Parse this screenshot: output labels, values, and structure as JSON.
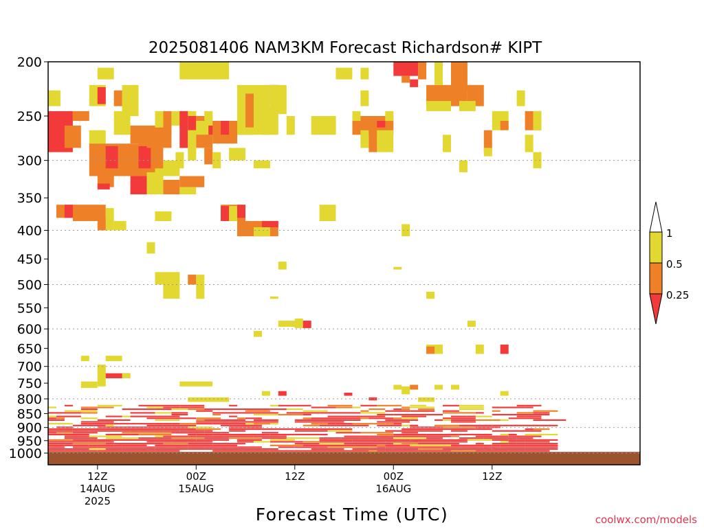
{
  "chart_data": {
    "type": "heatmap",
    "title": "2025081406 NAM3KM Forecast Richardson# KIPT",
    "xlabel": "Forecast Time (UTC)",
    "ylabel": "",
    "credit": "coolwx.com/models",
    "y_axis": {
      "scale": "pressure (hPa), decreasing upward",
      "range": [
        1000,
        200
      ],
      "ticks": [
        200,
        250,
        300,
        350,
        400,
        450,
        500,
        550,
        600,
        650,
        700,
        750,
        800,
        850,
        900,
        950,
        1000
      ],
      "gridlines_at": [
        300,
        400,
        500,
        600,
        700,
        800,
        900,
        1000
      ]
    },
    "x_axis": {
      "range": [
        "2025-08-14 06Z",
        "2025-08-17 06Z"
      ],
      "ticks": [
        {
          "time": "2025-08-14 12Z",
          "label_lines": [
            "12Z",
            "14AUG",
            "2025"
          ]
        },
        {
          "time": "2025-08-15 00Z",
          "label_lines": [
            "00Z",
            "15AUG"
          ]
        },
        {
          "time": "2025-08-15 12Z",
          "label_lines": [
            "12Z"
          ]
        },
        {
          "time": "2025-08-16 00Z",
          "label_lines": [
            "00Z",
            "16AUG"
          ]
        },
        {
          "time": "2025-08-16 12Z",
          "label_lines": [
            "12Z"
          ]
        }
      ]
    },
    "legend": {
      "placement": "right",
      "boundaries": [
        "0.25",
        "0.5",
        "1"
      ],
      "bins": [
        {
          "range": "< 0.25",
          "color": "#f23a3a"
        },
        {
          "range": "0.25 - 0.5",
          "color": "#ee8028"
        },
        {
          "range": "0.5 - 1",
          "color": "#e2d831"
        },
        {
          "range": "> 1",
          "color": "#ffffff"
        }
      ]
    },
    "ground_color": "#9b542d",
    "ground_top_hPa": 995,
    "regions": [
      {
        "hour": 0,
        "hours": 1.5,
        "p_top": 225,
        "p_bot": 240,
        "bin": "0.5-1"
      },
      {
        "hour": 0,
        "hours": 3,
        "p_top": 245,
        "p_bot": 290,
        "bin": "<0.25"
      },
      {
        "hour": 2,
        "hours": 2,
        "p_top": 260,
        "p_bot": 285,
        "bin": "0.25-0.5"
      },
      {
        "hour": 3,
        "hours": 2,
        "p_top": 245,
        "p_bot": 255,
        "bin": "0.25-0.5"
      },
      {
        "hour": 5,
        "hours": 2,
        "p_top": 265,
        "p_bot": 285,
        "bin": "0.5-1"
      },
      {
        "hour": 5,
        "hours": 9,
        "p_top": 280,
        "p_bot": 320,
        "bin": "0.25-0.5"
      },
      {
        "hour": 7,
        "hours": 1.5,
        "p_top": 283,
        "p_bot": 310,
        "bin": "<0.25"
      },
      {
        "hour": 11,
        "hours": 1.5,
        "p_top": 283,
        "p_bot": 310,
        "bin": "<0.25"
      },
      {
        "hour": 6,
        "hours": 2,
        "p_top": 318,
        "p_bot": 335,
        "bin": "0.25-0.5"
      },
      {
        "hour": 6,
        "hours": 1.5,
        "p_top": 330,
        "p_bot": 338,
        "bin": "<0.25"
      },
      {
        "hour": 1,
        "hours": 2,
        "p_top": 360,
        "p_bot": 380,
        "bin": "0.25-0.5"
      },
      {
        "hour": 2,
        "hours": 1.5,
        "p_top": 360,
        "p_bot": 380,
        "bin": "<0.25"
      },
      {
        "hour": 3,
        "hours": 4,
        "p_top": 360,
        "p_bot": 385,
        "bin": "0.25-0.5"
      },
      {
        "hour": 7,
        "hours": 1,
        "p_top": 365,
        "p_bot": 400,
        "bin": "0.5-1"
      },
      {
        "hour": 6,
        "hours": 1,
        "p_top": 380,
        "p_bot": 400,
        "bin": "0.25-0.5"
      },
      {
        "hour": 8,
        "hours": 1.5,
        "p_top": 385,
        "p_bot": 400,
        "bin": "0.5-1"
      },
      {
        "hour": 10,
        "hours": 2,
        "p_top": 320,
        "p_bot": 345,
        "bin": "<0.25"
      },
      {
        "hour": 6,
        "hours": 2,
        "p_top": 205,
        "p_bot": 215,
        "bin": "0.5-1"
      },
      {
        "hour": 5,
        "hours": 2,
        "p_top": 220,
        "p_bot": 240,
        "bin": "0.5-1"
      },
      {
        "hour": 6,
        "hours": 1,
        "p_top": 222,
        "p_bot": 238,
        "bin": "<0.25"
      },
      {
        "hour": 8,
        "hours": 1,
        "p_top": 225,
        "p_bot": 240,
        "bin": "0.25-0.5"
      },
      {
        "hour": 9,
        "hours": 2,
        "p_top": 220,
        "p_bot": 250,
        "bin": "0.5-1"
      },
      {
        "hour": 8,
        "hours": 2,
        "p_top": 245,
        "p_bot": 270,
        "bin": "0.5-1"
      },
      {
        "hour": 10,
        "hours": 2,
        "p_top": 260,
        "p_bot": 280,
        "bin": "0.25-0.5"
      },
      {
        "hour": 11,
        "hours": 2,
        "p_top": 268,
        "p_bot": 282,
        "bin": "0.25-0.5"
      },
      {
        "hour": 12,
        "hours": 2,
        "p_top": 260,
        "p_bot": 285,
        "bin": "0.25-0.5"
      },
      {
        "hour": 13,
        "hours": 2,
        "p_top": 258,
        "p_bot": 285,
        "bin": "0.25-0.5"
      },
      {
        "hour": 14,
        "hours": 1,
        "p_top": 245,
        "p_bot": 270,
        "bin": "0.25-0.5"
      },
      {
        "hour": 15,
        "hours": 1,
        "p_top": 245,
        "p_bot": 260,
        "bin": "0.5-1"
      },
      {
        "hour": 13,
        "hours": 1,
        "p_top": 245,
        "p_bot": 262,
        "bin": "0.5-1"
      },
      {
        "hour": 16,
        "hours": 1,
        "p_top": 245,
        "p_bot": 285,
        "bin": "<0.25"
      },
      {
        "hour": 16,
        "hours": 1,
        "p_top": 245,
        "p_bot": 262,
        "bin": "<0.25"
      },
      {
        "hour": 17,
        "hours": 1,
        "p_top": 245,
        "p_bot": 290,
        "bin": "0.5-1"
      },
      {
        "hour": 17,
        "hours": 1,
        "p_top": 250,
        "p_bot": 265,
        "bin": "<0.25"
      },
      {
        "hour": 18,
        "hours": 2,
        "p_top": 250,
        "p_bot": 285,
        "bin": "0.25-0.5"
      },
      {
        "hour": 19,
        "hours": 1,
        "p_top": 245,
        "p_bot": 255,
        "bin": "0.5-1"
      },
      {
        "hour": 16,
        "hours": 3,
        "p_top": 320,
        "p_bot": 335,
        "bin": "0.25-0.5"
      },
      {
        "hour": 16,
        "hours": 2,
        "p_top": 335,
        "p_bot": 345,
        "bin": "0.5-1"
      },
      {
        "hour": 14,
        "hours": 2,
        "p_top": 325,
        "p_bot": 345,
        "bin": "0.25-0.5"
      },
      {
        "hour": 13,
        "hours": 1,
        "p_top": 325,
        "p_bot": 340,
        "bin": "0.5-1"
      },
      {
        "hour": 12,
        "hours": 2,
        "p_top": 315,
        "p_bot": 345,
        "bin": "0.5-1"
      },
      {
        "hour": 13,
        "hours": 1,
        "p_top": 310,
        "p_bot": 330,
        "bin": "0.5-1"
      },
      {
        "hour": 12.5,
        "hours": 1,
        "p_top": 320,
        "p_bot": 345,
        "bin": "0.5-1"
      },
      {
        "hour": 14,
        "hours": 2,
        "p_top": 300,
        "p_bot": 320,
        "bin": "0.5-1"
      },
      {
        "hour": 15.5,
        "hours": 1,
        "p_top": 290,
        "p_bot": 310,
        "bin": "0.5-1"
      },
      {
        "hour": 17,
        "hours": 1,
        "p_top": 285,
        "p_bot": 300,
        "bin": "0.5-1"
      },
      {
        "hour": 19,
        "hours": 1,
        "p_top": 285,
        "p_bot": 305,
        "bin": "0.25-0.5"
      },
      {
        "hour": 20,
        "hours": 1,
        "p_top": 290,
        "p_bot": 310,
        "bin": "0.5-1"
      },
      {
        "hour": 18,
        "hours": 2,
        "p_top": 255,
        "p_bot": 270,
        "bin": "0.5-1"
      },
      {
        "hour": 19.5,
        "hours": 1,
        "p_top": 260,
        "p_bot": 270,
        "bin": "<0.25"
      },
      {
        "hour": 13,
        "hours": 2,
        "p_top": 370,
        "p_bot": 385,
        "bin": "0.5-1"
      },
      {
        "hour": 16,
        "hours": 6,
        "p_top": 200,
        "p_bot": 215,
        "bin": "0.5-1"
      },
      {
        "hour": 20,
        "hours": 3,
        "p_top": 255,
        "p_bot": 280,
        "bin": "0.25-0.5"
      },
      {
        "hour": 21,
        "hours": 1,
        "p_top": 255,
        "p_bot": 270,
        "bin": "<0.25"
      },
      {
        "hour": 23,
        "hours": 2,
        "p_top": 240,
        "p_bot": 270,
        "bin": "0.25-0.5"
      },
      {
        "hour": 22,
        "hours": 2,
        "p_top": 285,
        "p_bot": 300,
        "bin": "0.5-1"
      },
      {
        "hour": 21,
        "hours": 3,
        "p_top": 360,
        "p_bot": 385,
        "bin": "0.25-0.5"
      },
      {
        "hour": 21,
        "hours": 1,
        "p_top": 362,
        "p_bot": 385,
        "bin": "<0.25"
      },
      {
        "hour": 22,
        "hours": 1,
        "p_top": 362,
        "p_bot": 385,
        "bin": "0.5-1"
      },
      {
        "hour": 23,
        "hours": 1,
        "p_top": 360,
        "p_bot": 380,
        "bin": "<0.25"
      },
      {
        "hour": 23,
        "hours": 5,
        "p_top": 385,
        "p_bot": 410,
        "bin": "0.25-0.5"
      },
      {
        "hour": 25,
        "hours": 2,
        "p_top": 395,
        "p_bot": 410,
        "bin": "0.5-1"
      },
      {
        "hour": 26,
        "hours": 2,
        "p_top": 385,
        "p_bot": 395,
        "bin": "<0.25"
      },
      {
        "hour": 23,
        "hours": 4,
        "p_top": 220,
        "p_bot": 270,
        "bin": "0.5-1"
      },
      {
        "hour": 24,
        "hours": 1,
        "p_top": 228,
        "p_bot": 262,
        "bin": "0.25-0.5"
      },
      {
        "hour": 25,
        "hours": 1,
        "p_top": 230,
        "p_bot": 245,
        "bin": "0.5-1"
      },
      {
        "hour": 27,
        "hours": 1,
        "p_top": 220,
        "p_bot": 238,
        "bin": "<0.25"
      },
      {
        "hour": 27,
        "hours": 2,
        "p_top": 220,
        "p_bot": 248,
        "bin": "0.5-1"
      },
      {
        "hour": 26,
        "hours": 2,
        "p_top": 240,
        "p_bot": 270,
        "bin": "0.5-1"
      },
      {
        "hour": 29,
        "hours": 1,
        "p_top": 250,
        "p_bot": 270,
        "bin": "0.5-1"
      },
      {
        "hour": 25,
        "hours": 2,
        "p_top": 300,
        "p_bot": 310,
        "bin": "0.5-1"
      },
      {
        "hour": 32,
        "hours": 3,
        "p_top": 250,
        "p_bot": 270,
        "bin": "0.5-1"
      },
      {
        "hour": 33,
        "hours": 2,
        "p_top": 360,
        "p_bot": 385,
        "bin": "0.5-1"
      },
      {
        "hour": 35,
        "hours": 2,
        "p_top": 205,
        "p_bot": 215,
        "bin": "0.5-1"
      },
      {
        "hour": 38,
        "hours": 1,
        "p_top": 205,
        "p_bot": 215,
        "bin": "0.5-1"
      },
      {
        "hour": 37,
        "hours": 5,
        "p_top": 250,
        "p_bot": 270,
        "bin": "0.25-0.5"
      },
      {
        "hour": 37,
        "hours": 1,
        "p_top": 245,
        "p_bot": 255,
        "bin": "0.5-1"
      },
      {
        "hour": 38,
        "hours": 1,
        "p_top": 265,
        "p_bot": 285,
        "bin": "0.5-1"
      },
      {
        "hour": 39,
        "hours": 1,
        "p_top": 265,
        "p_bot": 290,
        "bin": "0.25-0.5"
      },
      {
        "hour": 40,
        "hours": 2,
        "p_top": 265,
        "p_bot": 290,
        "bin": "0.5-1"
      },
      {
        "hour": 40,
        "hours": 1,
        "p_top": 255,
        "p_bot": 262,
        "bin": "<0.25"
      },
      {
        "hour": 41,
        "hours": 1,
        "p_top": 245,
        "p_bot": 255,
        "bin": "0.5-1"
      },
      {
        "hour": 38,
        "hours": 1,
        "p_top": 225,
        "p_bot": 240,
        "bin": "0.5-1"
      },
      {
        "hour": 42,
        "hours": 3,
        "p_top": 200,
        "p_bot": 212,
        "bin": "<0.25"
      },
      {
        "hour": 45,
        "hours": 1,
        "p_top": 200,
        "p_bot": 215,
        "bin": "0.25-0.5"
      },
      {
        "hour": 43,
        "hours": 1,
        "p_top": 212,
        "p_bot": 218,
        "bin": "0.25-0.5"
      },
      {
        "hour": 44,
        "hours": 1,
        "p_top": 215,
        "p_bot": 222,
        "bin": "<0.25"
      },
      {
        "hour": 46,
        "hours": 5,
        "p_top": 220,
        "p_bot": 240,
        "bin": "0.25-0.5"
      },
      {
        "hour": 46,
        "hours": 3,
        "p_top": 235,
        "p_bot": 245,
        "bin": "0.5-1"
      },
      {
        "hour": 47,
        "hours": 1,
        "p_top": 200,
        "p_bot": 220,
        "bin": "0.5-1"
      },
      {
        "hour": 49,
        "hours": 2,
        "p_top": 200,
        "p_bot": 225,
        "bin": "0.25-0.5"
      },
      {
        "hour": 51,
        "hours": 2,
        "p_top": 220,
        "p_bot": 240,
        "bin": "0.25-0.5"
      },
      {
        "hour": 50,
        "hours": 2,
        "p_top": 235,
        "p_bot": 245,
        "bin": "0.5-1"
      },
      {
        "hour": 48,
        "hours": 1,
        "p_top": 270,
        "p_bot": 290,
        "bin": "0.5-1"
      },
      {
        "hour": 50,
        "hours": 1,
        "p_top": 300,
        "p_bot": 315,
        "bin": "0.5-1"
      },
      {
        "hour": 53,
        "hours": 1,
        "p_top": 265,
        "p_bot": 290,
        "bin": "0.25-0.5"
      },
      {
        "hour": 53,
        "hours": 1,
        "p_top": 285,
        "p_bot": 295,
        "bin": "0.5-1"
      },
      {
        "hour": 54,
        "hours": 2,
        "p_top": 245,
        "p_bot": 265,
        "bin": "0.5-1"
      },
      {
        "hour": 55,
        "hours": 1,
        "p_top": 255,
        "p_bot": 265,
        "bin": "0.25-0.5"
      },
      {
        "hour": 57,
        "hours": 1,
        "p_top": 225,
        "p_bot": 240,
        "bin": "0.5-1"
      },
      {
        "hour": 58,
        "hours": 2,
        "p_top": 245,
        "p_bot": 265,
        "bin": "0.25-0.5"
      },
      {
        "hour": 59,
        "hours": 1,
        "p_top": 245,
        "p_bot": 265,
        "bin": "0.5-1"
      },
      {
        "hour": 58,
        "hours": 1,
        "p_top": 270,
        "p_bot": 290,
        "bin": "0.5-1"
      },
      {
        "hour": 59,
        "hours": 1,
        "p_top": 290,
        "p_bot": 310,
        "bin": "0.5-1"
      },
      {
        "hour": 43,
        "hours": 1,
        "p_top": 390,
        "p_bot": 410,
        "bin": "0.5-1"
      },
      {
        "hour": 12,
        "hours": 1,
        "p_top": 420,
        "p_bot": 440,
        "bin": "0.5-1"
      },
      {
        "hour": 28,
        "hours": 1,
        "p_top": 455,
        "p_bot": 470,
        "bin": "0.5-1"
      },
      {
        "hour": 42,
        "hours": 1,
        "p_top": 465,
        "p_bot": 470,
        "bin": "0.5-1"
      },
      {
        "hour": 13,
        "hours": 3,
        "p_top": 475,
        "p_bot": 500,
        "bin": "0.5-1"
      },
      {
        "hour": 14,
        "hours": 2,
        "p_top": 500,
        "p_bot": 530,
        "bin": "0.5-1"
      },
      {
        "hour": 17,
        "hours": 1,
        "p_top": 480,
        "p_bot": 500,
        "bin": "0.25-0.5"
      },
      {
        "hour": 18,
        "hours": 1,
        "p_top": 480,
        "p_bot": 530,
        "bin": "0.5-1"
      },
      {
        "hour": 27,
        "hours": 1,
        "p_top": 525,
        "p_bot": 530,
        "bin": "0.5-1"
      },
      {
        "hour": 46,
        "hours": 1,
        "p_top": 515,
        "p_bot": 530,
        "bin": "0.5-1"
      },
      {
        "hour": 28,
        "hours": 3,
        "p_top": 580,
        "p_bot": 595,
        "bin": "0.5-1"
      },
      {
        "hour": 30,
        "hours": 1,
        "p_top": 575,
        "p_bot": 598,
        "bin": "0.5-1"
      },
      {
        "hour": 31,
        "hours": 1,
        "p_top": 580,
        "p_bot": 598,
        "bin": "<0.25"
      },
      {
        "hour": 25,
        "hours": 1,
        "p_top": 605,
        "p_bot": 620,
        "bin": "0.5-1"
      },
      {
        "hour": 51,
        "hours": 1,
        "p_top": 580,
        "p_bot": 595,
        "bin": "0.5-1"
      },
      {
        "hour": 46,
        "hours": 2,
        "p_top": 640,
        "p_bot": 665,
        "bin": "0.5-1"
      },
      {
        "hour": 46,
        "hours": 1,
        "p_top": 645,
        "p_bot": 665,
        "bin": "0.25-0.5"
      },
      {
        "hour": 52,
        "hours": 1,
        "p_top": 640,
        "p_bot": 665,
        "bin": "0.5-1"
      },
      {
        "hour": 55,
        "hours": 1,
        "p_top": 640,
        "p_bot": 665,
        "bin": "<0.25"
      },
      {
        "hour": 4,
        "hours": 1,
        "p_top": 670,
        "p_bot": 685,
        "bin": "0.5-1"
      },
      {
        "hour": 7,
        "hours": 2,
        "p_top": 670,
        "p_bot": 685,
        "bin": "0.5-1"
      },
      {
        "hour": 6,
        "hours": 1,
        "p_top": 695,
        "p_bot": 760,
        "bin": "0.5-1"
      },
      {
        "hour": 7,
        "hours": 3,
        "p_top": 720,
        "p_bot": 735,
        "bin": "<0.25"
      },
      {
        "hour": 9,
        "hours": 1,
        "p_top": 720,
        "p_bot": 735,
        "bin": "0.5-1"
      },
      {
        "hour": 4,
        "hours": 2,
        "p_top": 745,
        "p_bot": 765,
        "bin": "0.5-1"
      },
      {
        "hour": 16,
        "hours": 4,
        "p_top": 745,
        "p_bot": 760,
        "bin": "0.5-1"
      },
      {
        "hour": 17,
        "hours": 5,
        "p_top": 795,
        "p_bot": 810,
        "bin": "0.5-1"
      },
      {
        "hour": 26,
        "hours": 1,
        "p_top": 775,
        "p_bot": 790,
        "bin": "0.5-1"
      },
      {
        "hour": 28,
        "hours": 1,
        "p_top": 775,
        "p_bot": 790,
        "bin": "<0.25"
      },
      {
        "hour": 36,
        "hours": 1,
        "p_top": 780,
        "p_bot": 790,
        "bin": "<0.25"
      },
      {
        "hour": 39,
        "hours": 1,
        "p_top": 795,
        "p_bot": 805,
        "bin": "<0.25"
      },
      {
        "hour": 42,
        "hours": 1,
        "p_top": 755,
        "p_bot": 770,
        "bin": "0.5-1"
      },
      {
        "hour": 43,
        "hours": 1,
        "p_top": 760,
        "p_bot": 785,
        "bin": "0.5-1"
      },
      {
        "hour": 44,
        "hours": 1,
        "p_top": 755,
        "p_bot": 770,
        "bin": "0.25-0.5"
      },
      {
        "hour": 47,
        "hours": 1,
        "p_top": 755,
        "p_bot": 770,
        "bin": "0.5-1"
      },
      {
        "hour": 49,
        "hours": 1,
        "p_top": 755,
        "p_bot": 770,
        "bin": "0.5-1"
      },
      {
        "hour": 45,
        "hours": 2,
        "p_top": 795,
        "p_bot": 810,
        "bin": "0.5-1"
      },
      {
        "hour": 55,
        "hours": 1,
        "p_top": 775,
        "p_bot": 790,
        "bin": "0.5-1"
      }
    ],
    "boundary_layer_band": {
      "p_top": 820,
      "p_bot": 995,
      "hours": [
        0,
        60
      ],
      "note": "dense mixed bins, mostly < 0.25"
    }
  }
}
